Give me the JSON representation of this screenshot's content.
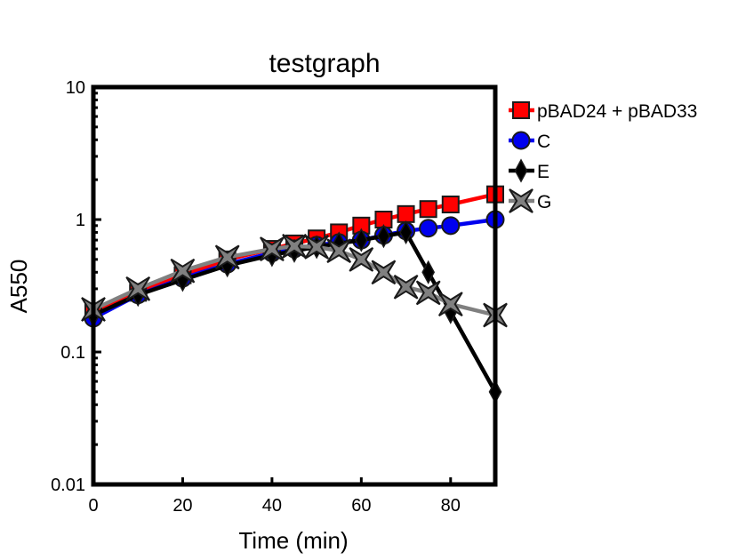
{
  "chart_data": {
    "type": "line",
    "title": "testgraph",
    "xlabel": "Time (min)",
    "ylabel": "A550",
    "xlim": [
      0,
      90
    ],
    "ylim": [
      0.01,
      10
    ],
    "yscale": "log",
    "x_ticks": [
      0,
      20,
      40,
      60,
      80
    ],
    "y_ticks": [
      0.01,
      0.1,
      1,
      10
    ],
    "y_tick_labels": [
      "0.01",
      "0.1",
      "1",
      "10"
    ],
    "legend_position": "right",
    "series": [
      {
        "name": "pBAD24 + pBAD33",
        "color": "#ff0000",
        "line_color": "#ff0000",
        "marker": "square",
        "x": [
          0,
          10,
          20,
          30,
          40,
          45,
          50,
          55,
          60,
          65,
          70,
          75,
          80,
          90
        ],
        "y": [
          0.2,
          0.28,
          0.38,
          0.5,
          0.6,
          0.66,
          0.72,
          0.8,
          0.9,
          1.0,
          1.1,
          1.2,
          1.3,
          1.55
        ]
      },
      {
        "name": "C",
        "color": "#0000ee",
        "line_color": "#0000ee",
        "marker": "circle",
        "x": [
          0,
          10,
          20,
          30,
          40,
          45,
          50,
          55,
          60,
          65,
          70,
          75,
          80,
          90
        ],
        "y": [
          0.18,
          0.27,
          0.36,
          0.46,
          0.56,
          0.6,
          0.64,
          0.67,
          0.7,
          0.76,
          0.82,
          0.86,
          0.9,
          1.0
        ]
      },
      {
        "name": "E",
        "color": "#000000",
        "line_color": "#000000",
        "marker": "diamond",
        "x": [
          0,
          10,
          20,
          30,
          40,
          45,
          50,
          55,
          60,
          65,
          70,
          75,
          80,
          90
        ],
        "y": [
          0.19,
          0.27,
          0.35,
          0.45,
          0.54,
          0.58,
          0.62,
          0.66,
          0.7,
          0.75,
          0.8,
          0.4,
          0.2,
          0.05
        ]
      },
      {
        "name": "G",
        "color": "#808080",
        "line_color": "#808080",
        "marker": "star4",
        "x": [
          0,
          10,
          20,
          30,
          40,
          45,
          50,
          55,
          60,
          65,
          70,
          75,
          80,
          90
        ],
        "y": [
          0.21,
          0.3,
          0.41,
          0.52,
          0.6,
          0.63,
          0.62,
          0.58,
          0.5,
          0.4,
          0.31,
          0.28,
          0.23,
          0.19
        ]
      }
    ]
  }
}
